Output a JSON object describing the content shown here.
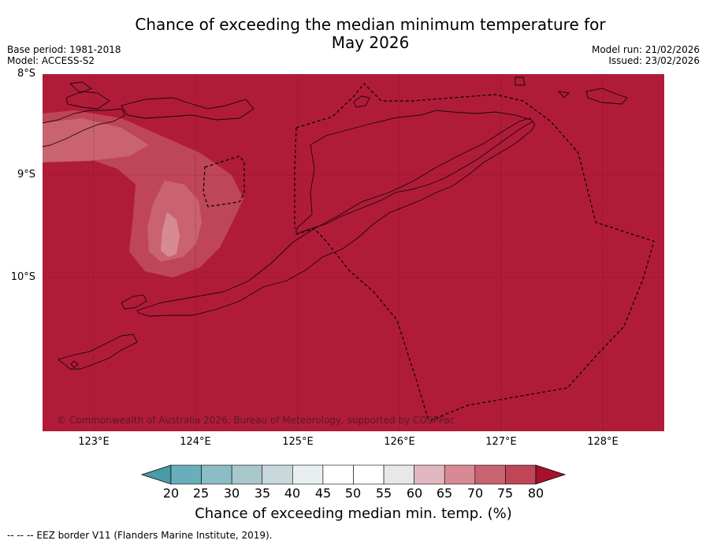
{
  "title_line1": "Chance of exceeding the median minimum temperature for",
  "title_line2": "May 2026",
  "meta": {
    "base_period": "Base period: 1981-2018",
    "model": "Model: ACCESS-S2",
    "model_run": "Model run: 21/02/2026",
    "issued": "Issued: 23/02/2026"
  },
  "map": {
    "lat_labels": [
      "8°S",
      "9°S",
      "10°S"
    ],
    "lon_labels": [
      "123°E",
      "124°E",
      "125°E",
      "126°E",
      "127°E",
      "128°E"
    ],
    "background_color": "#b01c38",
    "copyright": "© Commonwealth of Australia 2026, Bureau of Meteorology, supported by COSPPac"
  },
  "colorbar": {
    "title": "Chance of exceeding median min. temp. (%)",
    "tick_labels": [
      "20",
      "25",
      "30",
      "35",
      "40",
      "45",
      "50",
      "55",
      "60",
      "65",
      "70",
      "75",
      "80"
    ],
    "colors": [
      "#4a9aa8",
      "#6aaebc",
      "#8cbcc6",
      "#a9c8cc",
      "#c8d8dc",
      "#e8eff1",
      "#ffffff",
      "#ffffff",
      "#e8e8e8",
      "#e2b8c0",
      "#d88a94",
      "#c9636f",
      "#bf4656",
      "#a8102e"
    ]
  },
  "footnote": "--  --  -- EEZ border V11 (Flanders Marine Institute, 2019)."
}
